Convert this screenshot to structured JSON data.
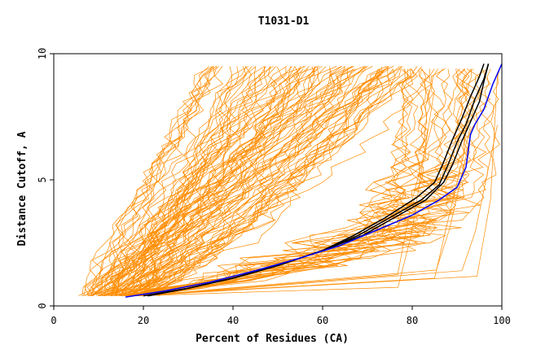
{
  "chart_data": {
    "type": "line",
    "title": "T1031-D1",
    "xlabel": "Percent of Residues (CA)",
    "ylabel": "Distance Cutoff, A",
    "xlim": [
      0,
      100
    ],
    "ylim": [
      0,
      10
    ],
    "xticks": [
      0,
      20,
      40,
      60,
      80,
      100
    ],
    "yticks": [
      0,
      5,
      10
    ],
    "grid": false,
    "legend": "none",
    "colors": {
      "background": "#ffffff",
      "group": "#ff8c00",
      "black": "#000000",
      "blue": "#0000ff"
    },
    "series": [
      {
        "color": "#000000",
        "x": [
          21,
          30,
          40,
          50,
          60,
          68,
          75,
          82,
          86,
          88,
          90,
          92,
          94,
          96,
          97
        ],
        "y": [
          0.4,
          0.7,
          1.1,
          1.6,
          2.2,
          2.8,
          3.5,
          4.2,
          4.8,
          5.6,
          6.5,
          7.2,
          8.2,
          9.0,
          9.6
        ]
      },
      {
        "color": "#000000",
        "x": [
          20,
          30,
          40,
          50,
          60,
          67,
          74,
          81,
          85,
          87,
          89,
          91,
          93,
          95,
          96
        ],
        "y": [
          0.4,
          0.7,
          1.1,
          1.6,
          2.2,
          2.8,
          3.5,
          4.3,
          4.9,
          5.7,
          6.6,
          7.4,
          8.3,
          9.1,
          9.6
        ]
      },
      {
        "color": "#000000",
        "x": [
          21,
          30,
          40,
          50,
          60,
          69,
          76,
          83,
          87,
          89,
          91,
          93,
          95,
          96,
          97
        ],
        "y": [
          0.4,
          0.7,
          1.1,
          1.6,
          2.2,
          2.8,
          3.5,
          4.2,
          4.9,
          5.6,
          6.5,
          7.3,
          8.1,
          8.9,
          9.6
        ]
      },
      {
        "color": "#0000ff",
        "x": [
          16,
          25,
          35,
          45,
          55,
          64,
          72,
          80,
          86,
          90,
          92,
          93,
          94,
          96,
          98,
          100
        ],
        "y": [
          0.35,
          0.6,
          0.95,
          1.4,
          1.9,
          2.4,
          3.0,
          3.6,
          4.2,
          4.7,
          5.5,
          6.8,
          7.2,
          7.8,
          8.8,
          9.6
        ]
      }
    ],
    "orange_group": {
      "color": "#ff8c00",
      "description_count": 120
    }
  }
}
